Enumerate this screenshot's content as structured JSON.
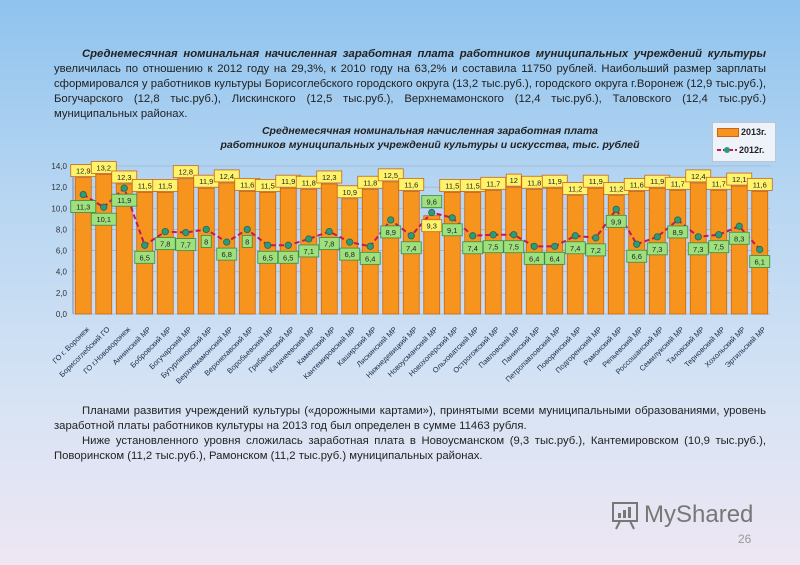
{
  "intro": {
    "bold_lead": "Среднемесячная номинальная начисленная заработная плата работников муниципальных учреждений культуры",
    "text": "увеличилась по отношению к 2012 году на 29,3%, к 2010 году на 63,2% и составила 11750 рублей. Наибольший размер зарплаты сформировался у работников культуры Борисоглебского городского округа (13,2 тыс.руб.), городского округа г.Воронеж (12,9 тыс.руб.), Богучарского (12,8 тыс.руб.), Лискинского (12,5 тыс.руб.), Верхнемамонского (12,4 тыс.руб.), Таловского (12,4 тыс.руб.) муниципальных районах."
  },
  "outro": {
    "p1": "Планами развития учреждений культуры («дорожными картами»), принятыми всеми муниципальными образованиями, уровень заработной платы работников культуры на 2013 год был определен в сумме 11463 рубля.",
    "p2": "Ниже установленного уровня сложилась заработная плата в Новоусманском (9,3 тыс.руб.), Кантемировском (10,9 тыс.руб.), Поворинском (11,2 тыс.руб.), Рамонском (11,2 тыс.руб.) муниципальных районах."
  },
  "watermark": "MyShared",
  "page_number": "26",
  "chart_data": {
    "type": "bar",
    "title": "Среднемесячная номинальная начисленная заработная плата работников муниципальных учреждений культуры и искусства, тыс. рублей",
    "title_line1": "Среднемесячная номинальная начисленная заработная плата",
    "title_line2": "работников муниципальных учреждений культуры и искусства, тыс. рублей",
    "ylim": [
      0,
      14
    ],
    "yticks": [
      "0,0",
      "2,0",
      "4,0",
      "6,0",
      "8,0",
      "10,0",
      "12,0",
      "14,0"
    ],
    "grid": true,
    "legend_position": "top-right",
    "categories": [
      "ГО г. Воронеж",
      "Борисоглебский ГО",
      "ГО г.Нововоронеж",
      "Аннинский МР",
      "Бобровский МР",
      "Богучарский МР",
      "Бутурлиновский МР",
      "Верхнемамонский МР",
      "Верхнехавский МР",
      "Воробьевский МР",
      "Грибановский МР",
      "Калачеевский МР",
      "Каменский МР",
      "Кантемировский МР",
      "Каширский МР",
      "Лискинский МР",
      "Нижнедевицкий МР",
      "Новоусманский МР",
      "Новохоперский МР",
      "Ольховатский МР",
      "Острогожский МР",
      "Павловский МР",
      "Панинский МР",
      "Петропавловский МР",
      "Поворинский МР",
      "Подгоренский МР",
      "Рамонский МР",
      "Репьевский МР",
      "Россошанский МР",
      "Семилукский МР",
      "Таловский МР",
      "Терновский МР",
      "Хохольский МР",
      "Эртильский МР"
    ],
    "series": [
      {
        "name": "2013г.",
        "type": "bar",
        "color": "#f7941d",
        "values": [
          12.9,
          13.2,
          12.3,
          11.5,
          11.5,
          12.8,
          11.9,
          12.4,
          11.6,
          11.5,
          11.9,
          11.8,
          12.3,
          10.9,
          11.8,
          12.5,
          11.6,
          9.3,
          11.5,
          11.5,
          11.7,
          12,
          11.8,
          11.9,
          11.2,
          11.9,
          11.2,
          11.6,
          11.9,
          11.7,
          12.4,
          11.7,
          12.1,
          11.6
        ],
        "labels": [
          "12,9",
          "13,2",
          "12,3",
          "11,5",
          "11,5",
          "12,8",
          "11,9",
          "12,4",
          "11,6",
          "11,5",
          "11,9",
          "11,8",
          "12,3",
          "10,9",
          "11,8",
          "12,5",
          "11,6",
          "9,3",
          "11,5",
          "11,5",
          "11,7",
          "12",
          "11,8",
          "11,9",
          "11,2",
          "11,9",
          "11,2",
          "11,6",
          "11,9",
          "11,7",
          "12,4",
          "11,7",
          "12,1",
          "11,6"
        ]
      },
      {
        "name": "2012г.",
        "type": "line",
        "color": "#c0185a",
        "values": [
          11.3,
          10.1,
          11.9,
          6.5,
          7.8,
          7.7,
          8,
          6.8,
          8,
          6.5,
          6.5,
          7.1,
          7.8,
          6.8,
          6.4,
          8.9,
          7.4,
          9.6,
          9.1,
          7.4,
          7.5,
          7.5,
          6.4,
          6.4,
          7.4,
          7.2,
          9.9,
          6.6,
          7.3,
          8.9,
          7.3,
          7.5,
          8.3,
          6.1
        ],
        "labels": [
          "11,3",
          "10,1",
          "11,9",
          "6,5",
          "7,8",
          "7,7",
          "8",
          "6,8",
          "8",
          "6,5",
          "6,5",
          "7,1",
          "7,8",
          "6,8",
          "6,4",
          "8,9",
          "7,4",
          "9,6",
          "9,1",
          "7,4",
          "7,5",
          "7,5",
          "6,4",
          "6,4",
          "7,4",
          "7,2",
          "9,9",
          "6,6",
          "7,3",
          "8,9",
          "7,3",
          "7,5",
          "8,3",
          "6,1"
        ]
      }
    ]
  }
}
